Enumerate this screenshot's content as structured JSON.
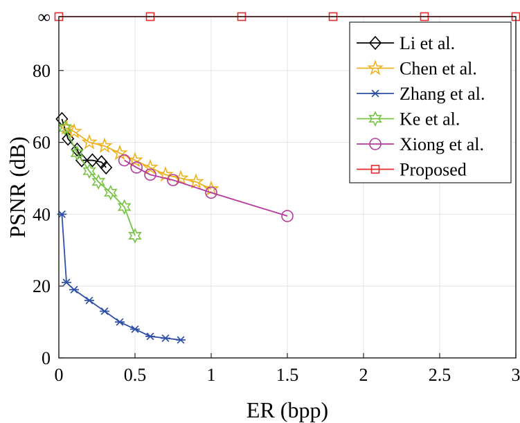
{
  "chart_data": {
    "type": "line",
    "title": "",
    "xlabel": "ER (bpp)",
    "ylabel": "PSNR (dB)",
    "xlim": [
      0,
      3
    ],
    "ylim": [
      0,
      95
    ],
    "x_ticks": [
      0,
      0.5,
      1,
      1.5,
      2,
      2.5,
      3
    ],
    "x_tick_labels": [
      "0",
      "0.5",
      "1",
      "1.5",
      "2",
      "2.5",
      "3"
    ],
    "y_ticks": [
      0,
      20,
      40,
      60,
      80,
      95
    ],
    "y_tick_labels": [
      "0",
      "20",
      "40",
      "60",
      "80",
      "∞"
    ],
    "grid": true,
    "legend_position": "top-right",
    "series": [
      {
        "name": "Li et al.",
        "color": "#000000",
        "marker": "diamond",
        "x": [
          0.02,
          0.06,
          0.12,
          0.15,
          0.22,
          0.28,
          0.31
        ],
        "y": [
          66.5,
          61,
          58,
          55,
          55,
          54.5,
          53
        ]
      },
      {
        "name": "Chen et al.",
        "color": "#EDB120",
        "marker": "star5",
        "x": [
          0.05,
          0.1,
          0.2,
          0.3,
          0.4,
          0.5,
          0.6,
          0.7,
          0.8,
          0.9,
          1.0
        ],
        "y": [
          64,
          63,
          60,
          59,
          57,
          55,
          53,
          51,
          50,
          49,
          47
        ]
      },
      {
        "name": "Zhang et al.",
        "color": "#2E4FA8",
        "marker": "asterisk",
        "x": [
          0.02,
          0.05,
          0.1,
          0.2,
          0.3,
          0.4,
          0.5,
          0.6,
          0.7,
          0.8
        ],
        "y": [
          40,
          21,
          19,
          16,
          13,
          10,
          8,
          6,
          5.5,
          5
        ]
      },
      {
        "name": "Ke et al.",
        "color": "#77C243",
        "marker": "star6",
        "x": [
          0.04,
          0.12,
          0.2,
          0.26,
          0.34,
          0.43,
          0.5
        ],
        "y": [
          64,
          57,
          52,
          49,
          46,
          42,
          34
        ]
      },
      {
        "name": "Xiong et al.",
        "color": "#B5389E",
        "marker": "circle",
        "x": [
          0.43,
          0.51,
          0.6,
          0.75,
          1.0,
          1.5
        ],
        "y": [
          55,
          53,
          51,
          49.5,
          46,
          39.5
        ]
      },
      {
        "name": "Proposed",
        "color": "#E8292B",
        "marker": "square",
        "x": [
          0,
          0.6,
          1.2,
          1.8,
          2.4,
          3.0
        ],
        "y": [
          95,
          95,
          95,
          95,
          95,
          95
        ]
      }
    ]
  }
}
